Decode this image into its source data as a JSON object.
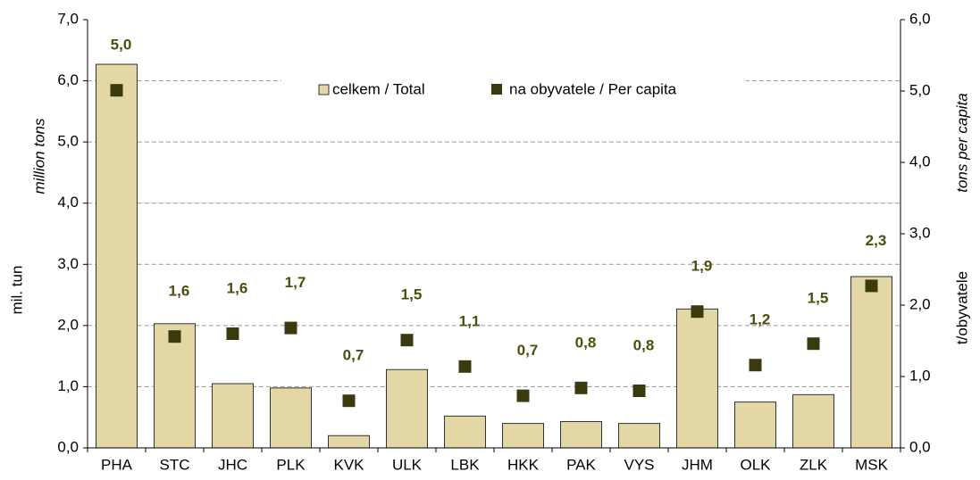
{
  "chart_data": {
    "type": "bar",
    "categories": [
      "PHA",
      "STC",
      "JHC",
      "PLK",
      "KVK",
      "ULK",
      "LBK",
      "HKK",
      "PAK",
      "VYS",
      "JHM",
      "OLK",
      "ZLK",
      "MSK"
    ],
    "series": [
      {
        "name": "celkem / Total",
        "type": "bar",
        "color": "#e3d7a6",
        "values": [
          6.27,
          2.03,
          1.05,
          0.98,
          0.2,
          1.28,
          0.52,
          0.4,
          0.43,
          0.4,
          2.27,
          0.75,
          0.87,
          2.8
        ]
      },
      {
        "name": "na obyvatele / Per capita",
        "type": "scatter",
        "axis": "y2",
        "color": "#3b3a0f",
        "values": [
          5.01,
          1.56,
          1.6,
          1.68,
          0.66,
          1.51,
          1.14,
          0.73,
          0.84,
          0.8,
          1.91,
          1.16,
          1.46,
          2.27
        ],
        "value_labels": [
          "5,0",
          "1,6",
          "1,6",
          "1,7",
          "0,7",
          "1,5",
          "1,1",
          "0,7",
          "0,8",
          "0,8",
          "1,9",
          "1,2",
          "1,5",
          "2,3"
        ]
      }
    ],
    "y_label": "mil. tun",
    "y_label_en": "million  tons",
    "y2_label": "t/obyvatele",
    "y2_label_en": "tons  per capita",
    "ylim": [
      0,
      7
    ],
    "yticks": [
      {
        "value": 0,
        "label": "0,0"
      },
      {
        "value": 1,
        "label": "1,0"
      },
      {
        "value": 2,
        "label": "2,0"
      },
      {
        "value": 3,
        "label": "3,0"
      },
      {
        "value": 4,
        "label": "4,0"
      },
      {
        "value": 5,
        "label": "5,0"
      },
      {
        "value": 6,
        "label": "6,0"
      },
      {
        "value": 7,
        "label": "7,0"
      }
    ],
    "y2lim": [
      0,
      6
    ],
    "y2ticks": [
      {
        "value": 0,
        "label": "0,0"
      },
      {
        "value": 1,
        "label": "1,0"
      },
      {
        "value": 2,
        "label": "2,0"
      },
      {
        "value": 3,
        "label": "3,0"
      },
      {
        "value": 4,
        "label": "4,0"
      },
      {
        "value": 5,
        "label": "5,0"
      },
      {
        "value": 6,
        "label": "6,0"
      }
    ],
    "grid": true,
    "legend": "upper center"
  }
}
